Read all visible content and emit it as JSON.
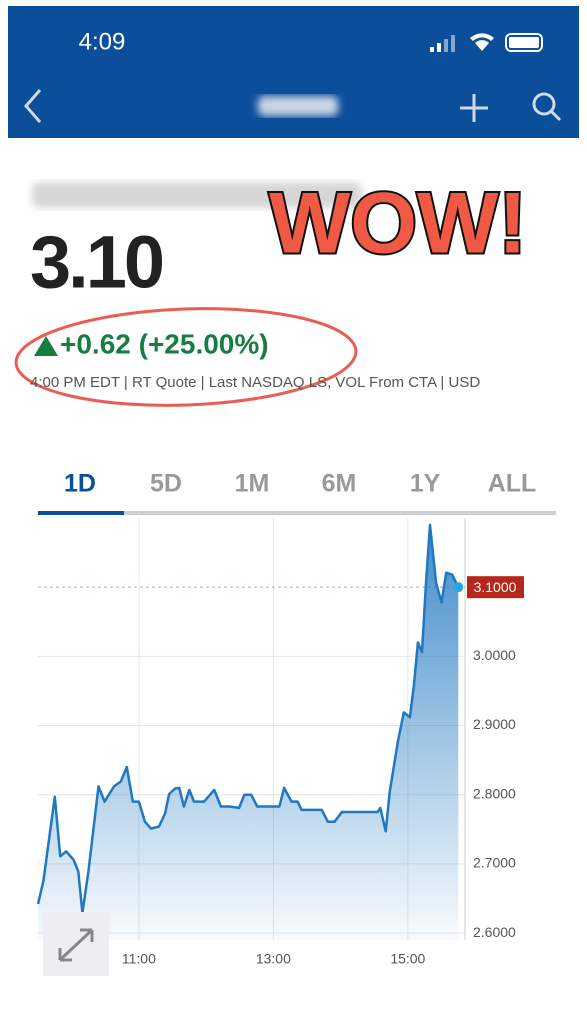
{
  "status_bar": {
    "time": "4:09"
  },
  "stat": {
    "price": "3.10",
    "change": "+0.62 (+25.00%)",
    "info": "4:00 PM EDT | RT Quote | Last NASDAQ LS, VOL From CTA | USD"
  },
  "annotation": "WOW!",
  "tabs": [
    "1D",
    "5D",
    "1M",
    "6M",
    "1Y",
    "ALL"
  ],
  "chart_data": {
    "type": "line",
    "x": [
      9.5,
      9.58,
      9.68,
      9.75,
      9.83,
      9.92,
      10.03,
      10.1,
      10.16,
      10.25,
      10.4,
      10.49,
      10.63,
      10.73,
      10.82,
      10.91,
      11.0,
      11.09,
      11.18,
      11.3,
      11.39,
      11.45,
      11.54,
      11.6,
      11.67,
      11.75,
      11.82,
      11.97,
      12.12,
      12.22,
      12.34,
      12.49,
      12.57,
      12.67,
      12.76,
      12.91,
      13.09,
      13.16,
      13.27,
      13.36,
      13.42,
      13.72,
      13.81,
      13.91,
      14.02,
      14.55,
      14.59,
      14.67,
      14.73,
      14.85,
      14.94,
      15.03,
      15.09,
      15.15,
      15.21,
      15.27,
      15.33,
      15.42,
      15.5,
      15.57,
      15.66,
      15.75
    ],
    "series": [
      {
        "color": "#1f78c1",
        "values": [
          2.642,
          2.675,
          2.747,
          2.797,
          2.711,
          2.718,
          2.706,
          2.689,
          2.629,
          2.689,
          2.812,
          2.79,
          2.812,
          2.819,
          2.84,
          2.79,
          2.79,
          2.761,
          2.751,
          2.754,
          2.773,
          2.801,
          2.809,
          2.81,
          2.783,
          2.807,
          2.79,
          2.79,
          2.807,
          2.783,
          2.783,
          2.781,
          2.8,
          2.8,
          2.783,
          2.783,
          2.783,
          2.81,
          2.79,
          2.79,
          2.778,
          2.778,
          2.761,
          2.761,
          2.775,
          2.775,
          2.781,
          2.747,
          2.804,
          2.876,
          2.919,
          2.912,
          2.958,
          3.02,
          3.006,
          3.106,
          3.19,
          3.106,
          3.078,
          3.121,
          3.118,
          3.1
        ]
      }
    ],
    "xlim": [
      9.5,
      15.85
    ],
    "ylim": [
      2.59,
      3.2
    ],
    "xticks": [
      {
        "value": 11,
        "label": "11:00"
      },
      {
        "value": 13,
        "label": "13:00"
      },
      {
        "value": 15,
        "label": "15:00"
      }
    ],
    "yticks": [
      {
        "value": 2.6,
        "label": "2.6000"
      },
      {
        "value": 2.7,
        "label": "2.7000"
      },
      {
        "value": 2.8,
        "label": "2.8000"
      },
      {
        "value": 2.9,
        "label": "2.9000"
      },
      {
        "value": 3.0,
        "label": "3.0000"
      }
    ],
    "last_price": {
      "value": 3.1,
      "label": "3.1000"
    },
    "grid": true
  }
}
